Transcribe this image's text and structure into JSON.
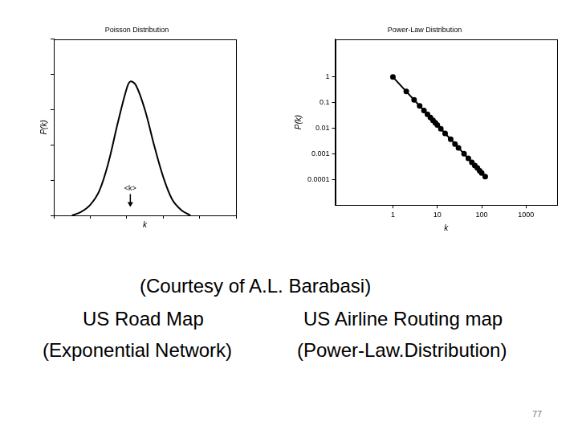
{
  "chart_data": [
    {
      "type": "line",
      "title": "Poisson Distribution",
      "x_label": "k",
      "y_label": "P(k)",
      "x": [
        1.0,
        1.5,
        2.0,
        2.5,
        3.0,
        3.5,
        4.0,
        4.2,
        4.5,
        5.0,
        5.5,
        6.0,
        6.5,
        7.0,
        7.5
      ],
      "values": [
        0.0,
        0.02,
        0.06,
        0.14,
        0.3,
        0.52,
        0.72,
        0.76,
        0.74,
        0.6,
        0.4,
        0.22,
        0.09,
        0.03,
        0.0
      ],
      "xlim": [
        0,
        10
      ],
      "ylim": [
        0,
        1
      ],
      "xticks": [
        0,
        2,
        4,
        6,
        8,
        10
      ],
      "yticks": [
        0,
        0.2,
        0.4,
        0.6,
        0.8,
        1
      ],
      "tick_labels": false,
      "grid": false,
      "color": "#000000",
      "marker": "none",
      "annotations": [
        {
          "text": "<k>",
          "x": 4.2,
          "y": 0.13
        }
      ]
    },
    {
      "type": "line",
      "title": "Power-Law Distribution",
      "x_label": "k",
      "y_label": "P(k)",
      "log": true,
      "x": [
        1,
        2,
        3,
        4,
        5,
        6,
        7,
        8,
        9,
        10,
        12,
        15,
        20,
        25,
        30,
        40,
        50,
        60,
        70,
        80,
        90,
        100,
        120
      ],
      "values": [
        1,
        0.273,
        0.128,
        0.0747,
        0.0493,
        0.0351,
        0.0263,
        0.0205,
        0.0164,
        0.0135,
        0.0096,
        0.0063,
        0.0037,
        0.00243,
        0.00173,
        0.00101,
        0.00067,
        0.00047,
        0.00035,
        0.00028,
        0.00022,
        0.00018,
        0.00013
      ],
      "xlim": [
        0.05,
        5000
      ],
      "ylim": [
        1e-05,
        30
      ],
      "xticks": [
        1,
        10,
        100,
        1000
      ],
      "yticks": [
        0.0001,
        0.001,
        0.01,
        0.1,
        1
      ],
      "grid": false,
      "color": "#000000",
      "marker": "circle"
    }
  ],
  "caption": {
    "credit": "(Courtesy of A.L. Barabasi)",
    "left": [
      "US Road Map",
      "(Exponential Network)"
    ],
    "right": [
      "US Airline Routing map",
      "(Power-Law.Distribution)"
    ]
  },
  "page_number": 77
}
